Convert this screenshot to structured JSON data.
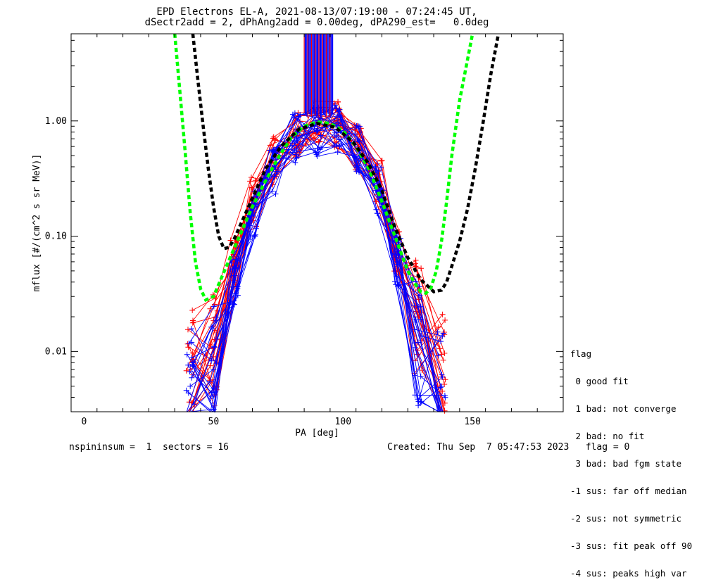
{
  "header": {
    "title_line1": "EPD Electrons EL-A, 2021-08-13/07:19:00 - 07:24:45 UT,",
    "title_line2": "dSectr2add = 2, dPhAng2add = 0.00deg, dPA290_est=   0.0deg"
  },
  "legend": {
    "title": "flag",
    "items": [
      " 0 good fit",
      " 1 bad: not converge",
      " 2 bad: no fit",
      " 3 bad: bad fgm state",
      "-1 sus: far off median",
      "-2 sus: not symmetric",
      "-3 sus: fit peak off 90",
      "-4 sus: peaks high var"
    ]
  },
  "footer": {
    "left": "nspininsum =  1  sectors = 16",
    "right": "Created: Thu Sep  7 05:47:53 2023   flag = 0"
  },
  "colors": {
    "red": "#ff0000",
    "blue": "#0000ff",
    "green": "#00ff00",
    "black": "#000000"
  },
  "chart_data": {
    "type": "line",
    "xlabel": "PA [deg]",
    "ylabel": "mflux [#/(cm^2 s sr MeV)]",
    "xlim": [
      -5,
      185
    ],
    "ylim": [
      0.003,
      5.7
    ],
    "yscale": "log",
    "xticks": [
      0,
      50,
      100,
      150
    ],
    "xtick_labels": [
      "0",
      "50",
      "100",
      "150"
    ],
    "yticks": [
      0.01,
      0.1,
      1.0
    ],
    "ytick_labels": [
      "0.01",
      "0.10",
      "1.00"
    ],
    "series": [
      {
        "color": "red",
        "x": [
          41,
          50,
          58,
          65,
          73,
          82,
          90,
          98,
          106,
          114,
          121,
          129,
          138
        ],
        "y": [
          0.007,
          0.009,
          0.06,
          0.2,
          0.45,
          0.8,
          0.92,
          0.95,
          0.6,
          0.3,
          0.08,
          0.02,
          0.006
        ]
      },
      {
        "color": "blue",
        "x": [
          41,
          50,
          58,
          65,
          73,
          82,
          90,
          98,
          106,
          114,
          121,
          129,
          138
        ],
        "y": [
          0.005,
          0.007,
          0.04,
          0.16,
          0.38,
          0.72,
          0.82,
          0.85,
          0.55,
          0.26,
          0.06,
          0.012,
          0.005
        ]
      },
      {
        "color": "green",
        "x": [
          35,
          37,
          39,
          41,
          43,
          45,
          47,
          50,
          55,
          60,
          65,
          70,
          75,
          80,
          85,
          90,
          95,
          100,
          105,
          110,
          115,
          120,
          125,
          128,
          130,
          132,
          134,
          136,
          138,
          140,
          142,
          145,
          150
        ],
        "y": [
          5.7,
          1.8,
          0.55,
          0.16,
          0.06,
          0.035,
          0.028,
          0.03,
          0.055,
          0.1,
          0.18,
          0.3,
          0.48,
          0.72,
          0.9,
          0.98,
          0.95,
          0.82,
          0.6,
          0.38,
          0.2,
          0.1,
          0.05,
          0.038,
          0.033,
          0.032,
          0.036,
          0.05,
          0.09,
          0.2,
          0.5,
          1.5,
          5.7
        ]
      },
      {
        "color": "black",
        "x": [
          42,
          44,
          46,
          48,
          50,
          52,
          54,
          56,
          58,
          60,
          63,
          66,
          70,
          76,
          83,
          90,
          97,
          104,
          110,
          115,
          120,
          125,
          130,
          135,
          138,
          140,
          142,
          145,
          148,
          151,
          154,
          157,
          160
        ],
        "y": [
          5.7,
          2.2,
          0.9,
          0.38,
          0.18,
          0.1,
          0.078,
          0.08,
          0.095,
          0.12,
          0.17,
          0.24,
          0.38,
          0.6,
          0.85,
          0.95,
          0.88,
          0.65,
          0.42,
          0.25,
          0.12,
          0.065,
          0.042,
          0.033,
          0.034,
          0.04,
          0.055,
          0.09,
          0.17,
          0.38,
          0.95,
          2.5,
          5.7
        ]
      }
    ]
  }
}
